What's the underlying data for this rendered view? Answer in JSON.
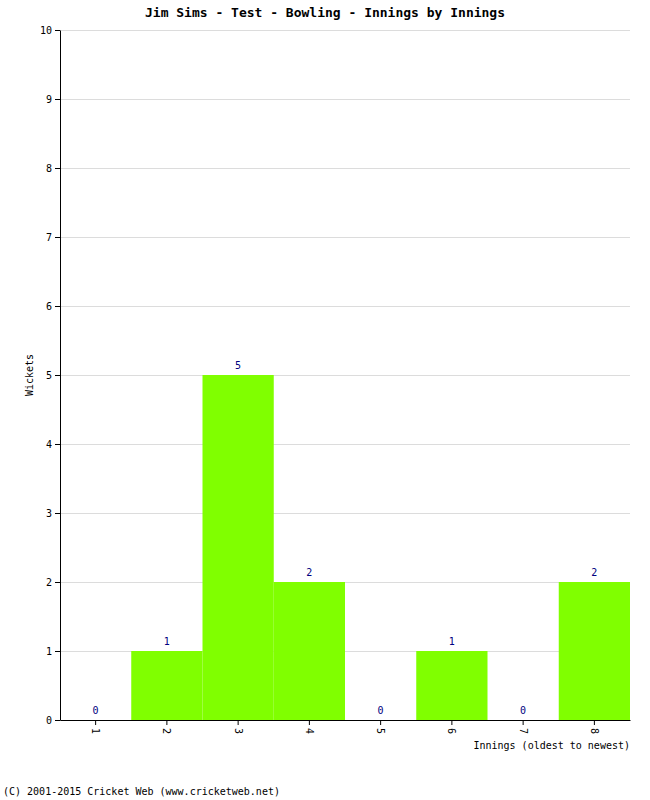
{
  "chart_data": {
    "type": "bar",
    "title": "Jim Sims - Test - Bowling - Innings by Innings",
    "xlabel": "Innings (oldest to newest)",
    "ylabel": "Wickets",
    "categories": [
      "1",
      "2",
      "3",
      "4",
      "5",
      "6",
      "7",
      "8"
    ],
    "values": [
      0,
      1,
      5,
      2,
      0,
      1,
      0,
      2
    ],
    "color": "#80ff00",
    "ylim": [
      0,
      10
    ],
    "yticks": [
      0,
      1,
      2,
      3,
      4,
      5,
      6,
      7,
      8,
      9,
      10
    ],
    "grid": true,
    "data_labels": true,
    "annotations": [
      "(C) 2001-2015 Cricket Web (www.cricketweb.net)"
    ]
  }
}
